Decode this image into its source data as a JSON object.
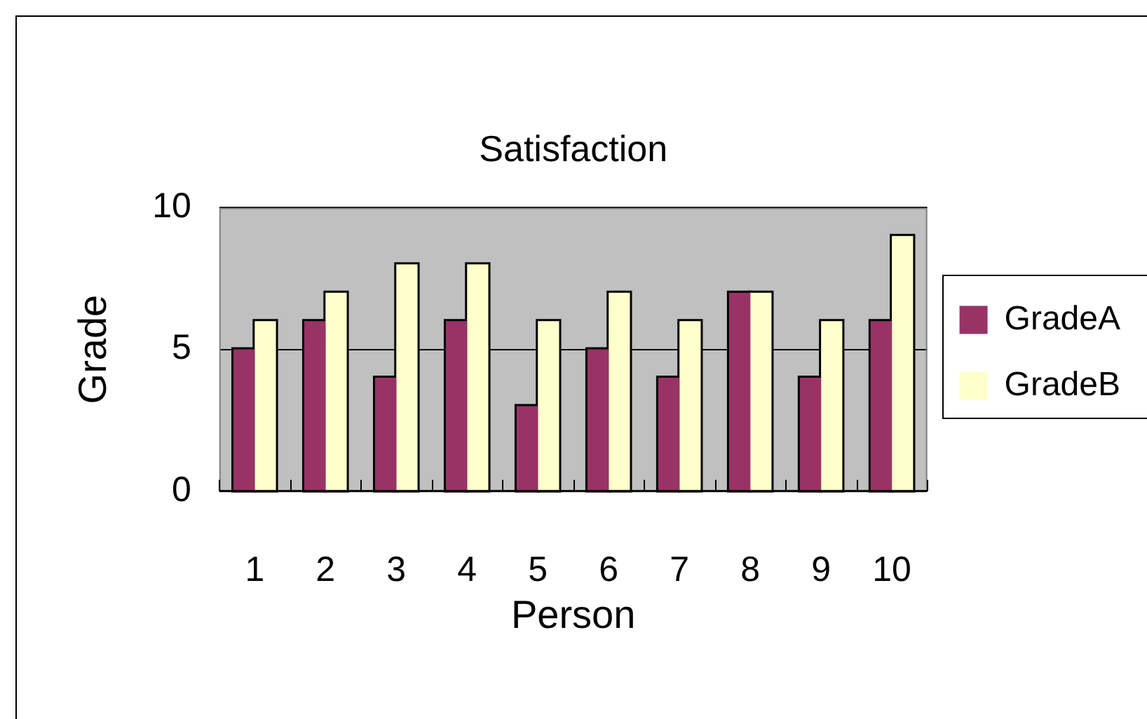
{
  "chart_data": {
    "type": "bar",
    "title": "Satisfaction",
    "xlabel": "Person",
    "ylabel": "Grade",
    "categories": [
      "1",
      "2",
      "3",
      "4",
      "5",
      "6",
      "7",
      "8",
      "9",
      "10"
    ],
    "series": [
      {
        "name": "GradeA",
        "color": "#993366",
        "values": [
          5,
          6,
          4,
          6,
          3,
          5,
          4,
          7,
          4,
          6
        ]
      },
      {
        "name": "GradeB",
        "color": "#ffffcc",
        "values": [
          6,
          7,
          8,
          8,
          6,
          7,
          6,
          7,
          6,
          9
        ]
      }
    ],
    "ylim": [
      0,
      10
    ],
    "yticks": [
      0,
      5,
      10
    ],
    "grid": "y",
    "legend": "right"
  }
}
